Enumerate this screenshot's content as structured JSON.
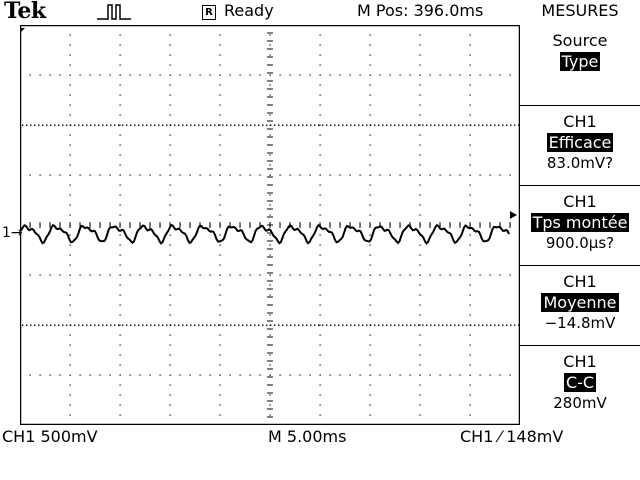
{
  "header": {
    "logo": "Tek",
    "status_box": "R",
    "status": "Ready",
    "mpos": "M Pos: 396.0ms",
    "menu_title": "MESURES"
  },
  "panel": {
    "buttons": [
      {
        "line1": "Source",
        "highlight": "Type",
        "line3": ""
      },
      {
        "line1": "CH1",
        "highlight": "Efficace",
        "line3": "83.0mV?"
      },
      {
        "line1": "CH1",
        "highlight": "Tps montée",
        "line3": "900.0µs?"
      },
      {
        "line1": "CH1",
        "highlight": "Moyenne",
        "line3": "−14.8mV"
      },
      {
        "line1": "CH1",
        "highlight": "C-C",
        "line3": "280mV"
      }
    ]
  },
  "footer": {
    "ch1_scale": "CH1   500mV",
    "timebase": "M 5.00ms",
    "trigger": "CH1 ⁄ 148mV"
  },
  "channel_marker": "1→"
}
